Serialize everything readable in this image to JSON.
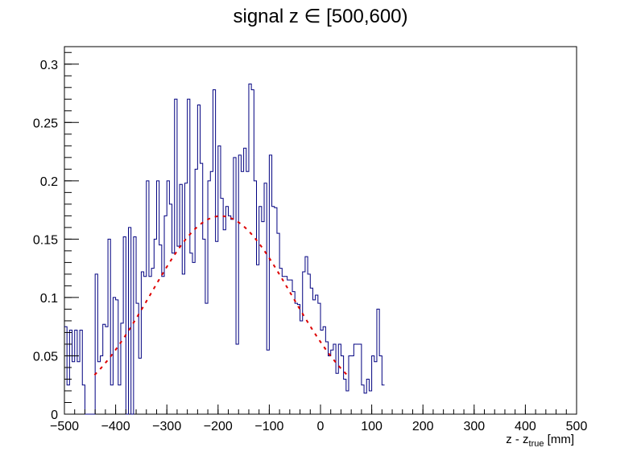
{
  "chart_data": {
    "type": "histogram",
    "title": "signal z ∈ [500,600)",
    "xlabel_main": "z - z",
    "xlabel_sub": "true",
    "xlabel_unit": " [mm]",
    "ylabel": "",
    "xlim": [
      -500,
      500
    ],
    "ylim": [
      0,
      0.315
    ],
    "x_ticks": [
      -500,
      -400,
      -300,
      -200,
      -100,
      0,
      100,
      200,
      300,
      400,
      500
    ],
    "x_tick_labels": [
      "−500",
      "−400",
      "−300",
      "−200",
      "−100",
      "0",
      "100",
      "200",
      "300",
      "400",
      "500"
    ],
    "y_ticks": [
      0,
      0.05,
      0.1,
      0.15,
      0.2,
      0.25,
      0.3
    ],
    "y_tick_labels": [
      "0",
      "0.05",
      "0.1",
      "0.15",
      "0.2",
      "0.25",
      "0.3"
    ],
    "grid": false,
    "legend": "none",
    "bin_width": 5,
    "series": [
      {
        "values": [
          0.075,
          0.025,
          0.072,
          0.045,
          0.072,
          0.045,
          0.072,
          0.025,
          0,
          0,
          0,
          0,
          0.12,
          0.045,
          0.05,
          0.077,
          0.075,
          0.15,
          0.025,
          0.1,
          0.098,
          0.025,
          0.078,
          0.152,
          0,
          0.16,
          0,
          0.152,
          0.095,
          0.048,
          0.122,
          0.118,
          0.2,
          0.118,
          0.125,
          0.15,
          0.2,
          0.145,
          0.118,
          0.17,
          0.2,
          0.18,
          0.138,
          0.27,
          0.144,
          0.197,
          0.12,
          0.198,
          0.27,
          0.138,
          0.13,
          0.21,
          0.265,
          0.215,
          0.15,
          0.095,
          0.2,
          0.208,
          0.278,
          0.148,
          0.23,
          0.185,
          0.158,
          0.178,
          0.17,
          0.167,
          0.22,
          0.06,
          0.222,
          0.208,
          0.228,
          0.208,
          0.283,
          0.278,
          0.2,
          0.128,
          0.178,
          0.165,
          0.198,
          0.055,
          0.222,
          0.178,
          0.177,
          0.155,
          0.125,
          0.118,
          0.118,
          0.115,
          0.115,
          0.105,
          0.095,
          0.094,
          0.08,
          0.122,
          0.135,
          0.12,
          0.108,
          0.098,
          0.102,
          0.095,
          0.072,
          0.075,
          0.062,
          0.05,
          0.055,
          0.06,
          0.035,
          0.06,
          0.05,
          0.03,
          0.02,
          0.05,
          0.05,
          0.06,
          0.06,
          0.06,
          0.025,
          0.018,
          0.03,
          0.02,
          0.05,
          0.045,
          0.09,
          0.05,
          0.025
        ]
      }
    ]
  }
}
